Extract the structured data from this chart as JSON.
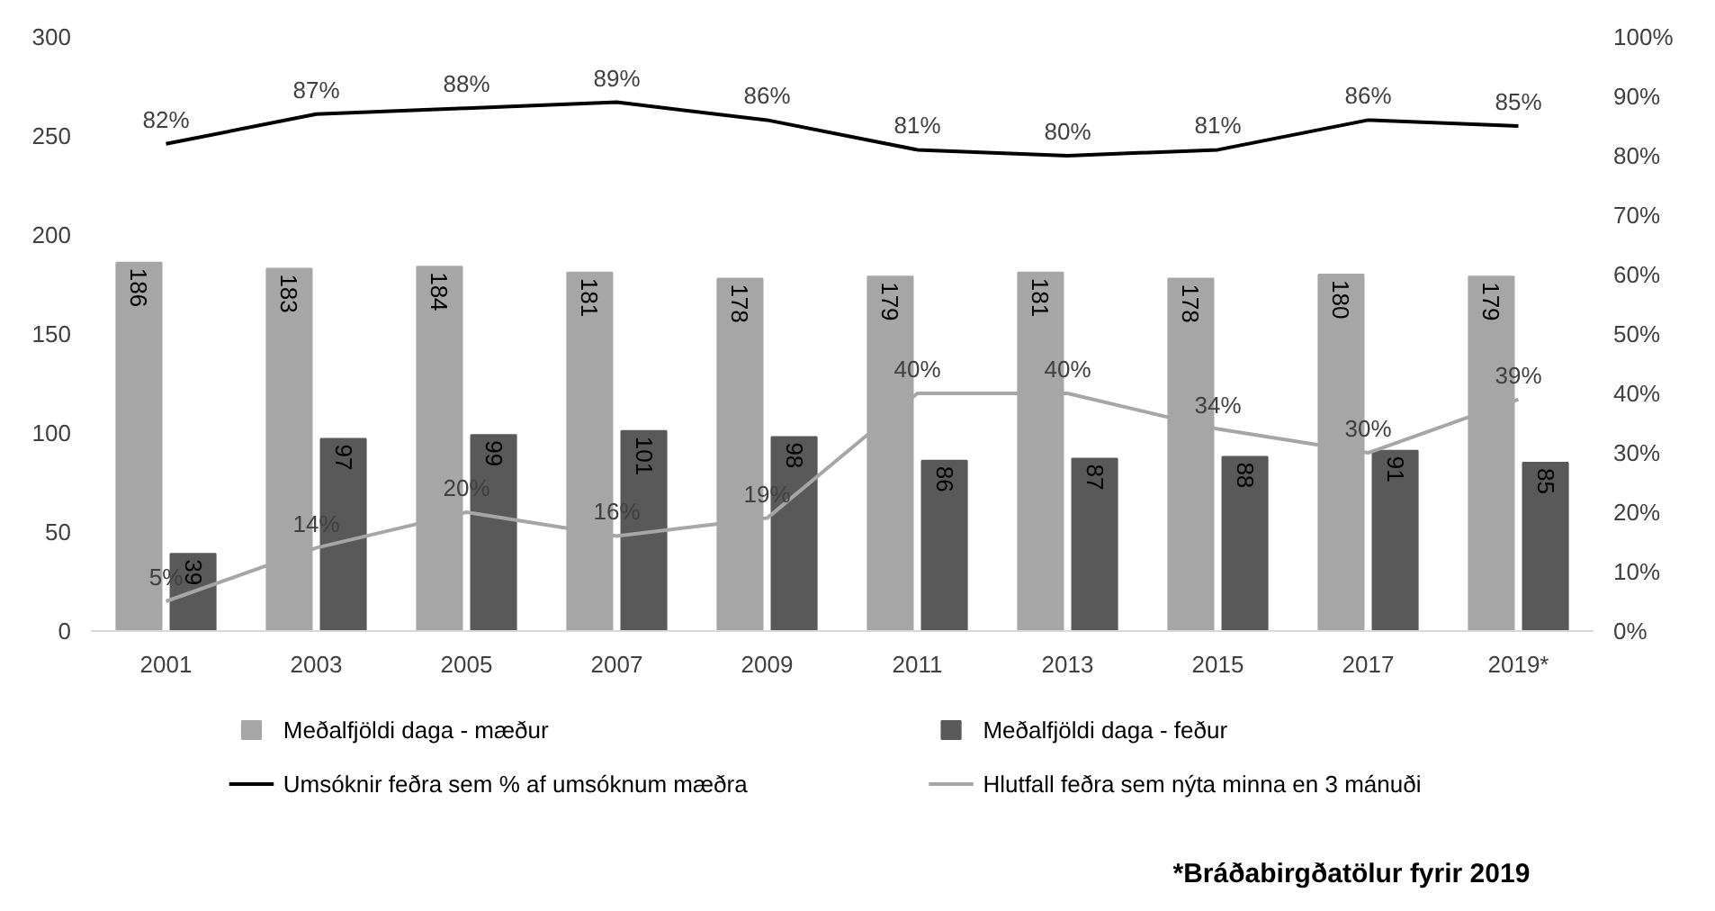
{
  "chart_data": {
    "type": "bar",
    "categories": [
      "2001",
      "2003",
      "2005",
      "2007",
      "2009",
      "2011",
      "2013",
      "2015",
      "2017",
      "2019*"
    ],
    "series": [
      {
        "name": "Meðalfjöldi daga - mæður",
        "color": "#a6a6a6",
        "values": [
          186,
          183,
          184,
          181,
          178,
          179,
          181,
          178,
          180,
          179
        ],
        "value_labels": [
          "186",
          "183",
          "184",
          "181",
          "178",
          "179",
          "181",
          "178",
          "180",
          "179"
        ]
      },
      {
        "name": "Meðalfjöldi daga - feður",
        "color": "#595959",
        "values": [
          39,
          97,
          99,
          101,
          98,
          86,
          87,
          88,
          91,
          85
        ],
        "value_labels": [
          "39",
          "97",
          "99",
          "101",
          "98",
          "86",
          "87",
          "88",
          "91",
          "85"
        ]
      },
      {
        "name": "Umsóknir feðra sem % af umsóknum mæðra",
        "type": "line",
        "axis": "y2",
        "color": "#000000",
        "values": [
          82,
          87,
          88,
          89,
          86,
          81,
          80,
          81,
          86,
          85
        ],
        "value_labels": [
          "82%",
          "87%",
          "88%",
          "89%",
          "86%",
          "81%",
          "80%",
          "81%",
          "86%",
          "85%"
        ]
      },
      {
        "name": "Hlutfall feðra sem nýta minna en 3 mánuði",
        "type": "line",
        "axis": "y2",
        "color": "#a6a6a6",
        "values": [
          5,
          14,
          20,
          16,
          19,
          40,
          40,
          34,
          30,
          39
        ],
        "value_labels": [
          "5%",
          "14%",
          "20%",
          "16%",
          "19%",
          "40%",
          "40%",
          "34%",
          "30%",
          "39%"
        ]
      }
    ],
    "ylim": [
      0,
      300
    ],
    "yticks": [
      0,
      50,
      100,
      150,
      200,
      250,
      300
    ],
    "y2lim": [
      0,
      100
    ],
    "y2ticks": [
      {
        "value": 0,
        "label": "0%"
      },
      {
        "value": 10,
        "label": "10%"
      },
      {
        "value": 20,
        "label": "20%"
      },
      {
        "value": 30,
        "label": "30%"
      },
      {
        "value": 40,
        "label": "40%"
      },
      {
        "value": 50,
        "label": "50%"
      },
      {
        "value": 60,
        "label": "60%"
      },
      {
        "value": 70,
        "label": "70%"
      },
      {
        "value": 80,
        "label": "80%"
      },
      {
        "value": 90,
        "label": "90%"
      },
      {
        "value": 100,
        "label": "100%"
      }
    ],
    "grid": false,
    "legend": "bottom",
    "annotations": [
      "*Bráðabirgðatölur fyrir 2019"
    ]
  }
}
